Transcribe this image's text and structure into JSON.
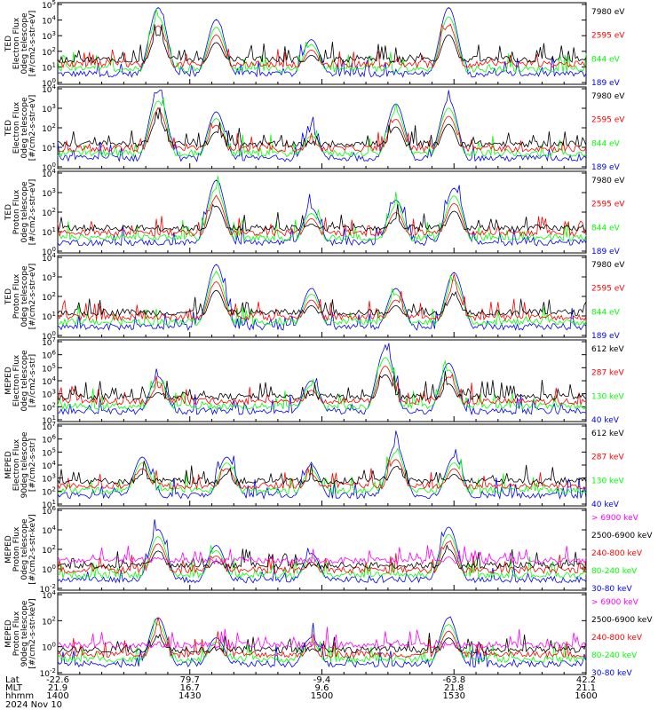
{
  "colors": {
    "black": "#000000",
    "red": "#ff0000",
    "green": "#00ff00",
    "blue": "#0000ff",
    "magenta": "#ff00ff"
  },
  "chart_data": {
    "type": "line",
    "x_axis": {
      "Lat": [
        "-22.6",
        "79.7",
        "-9.4",
        "-63.8",
        "42.2"
      ],
      "MLT": [
        "21.9",
        "16.7",
        "9.6",
        "21.8",
        "21.1"
      ],
      "hhmm": [
        "1400",
        "1430",
        "1500",
        "1530",
        "1600"
      ],
      "row_labels": [
        "Lat",
        "MLT",
        "hhmm"
      ],
      "date_label": "2024 Nov 10",
      "xlim_minutes": [
        0,
        120
      ]
    },
    "panels": [
      {
        "ylabel": [
          "TED",
          "Electron Flux",
          "0deg telescope",
          "[#/cm2-s-str-eV]"
        ],
        "yticks": [
          "10^5",
          "10^4",
          "10^3",
          "10^2",
          "10^1",
          "10^0"
        ],
        "ylim_exp": [
          0,
          5
        ],
        "log": true,
        "series": [
          {
            "name": "7980 eV",
            "color": "#000000"
          },
          {
            "name": "2595 eV",
            "color": "#ff0000"
          },
          {
            "name": "844 eV",
            "color": "#00ff00"
          },
          {
            "name": "189 eV",
            "color": "#0000ff"
          }
        ]
      },
      {
        "ylabel": [
          "TED",
          "Electron Flux",
          "0deg telescope",
          "[#/cm2-s-str-eV]"
        ],
        "yticks": [
          "10^4",
          "10^3",
          "10^2",
          "10^1",
          "10^0"
        ],
        "ylim_exp": [
          0,
          5
        ],
        "log": true,
        "series": [
          {
            "name": "7980 eV",
            "color": "#000000"
          },
          {
            "name": "2595 eV",
            "color": "#ff0000"
          },
          {
            "name": "844 eV",
            "color": "#00ff00"
          },
          {
            "name": "189 eV",
            "color": "#0000ff"
          }
        ]
      },
      {
        "ylabel": [
          "TED",
          "Proton Flux",
          "0deg telescope",
          "[#/cm2-s-str-eV]"
        ],
        "yticks": [
          "10^4",
          "10^3",
          "10^2",
          "10^1",
          "10^0"
        ],
        "ylim_exp": [
          0,
          5
        ],
        "log": true,
        "series": [
          {
            "name": "7980 eV",
            "color": "#000000"
          },
          {
            "name": "2595 eV",
            "color": "#ff0000"
          },
          {
            "name": "844 eV",
            "color": "#00ff00"
          },
          {
            "name": "189 eV",
            "color": "#0000ff"
          }
        ]
      },
      {
        "ylabel": [
          "TED",
          "Proton Flux",
          "0deg telescope",
          "[#/cm2-s-str-eV]"
        ],
        "yticks": [
          "10^4",
          "10^3",
          "10^2",
          "10^1",
          "10^0"
        ],
        "ylim_exp": [
          0,
          5
        ],
        "log": true,
        "series": [
          {
            "name": "7980 eV",
            "color": "#000000"
          },
          {
            "name": "2595 eV",
            "color": "#ff0000"
          },
          {
            "name": "844 eV",
            "color": "#00ff00"
          },
          {
            "name": "189 eV",
            "color": "#0000ff"
          }
        ]
      },
      {
        "ylabel": [
          "MEPED",
          "Electron Flux",
          "0deg telescope",
          "[#/cm2-s-str]"
        ],
        "yticks": [
          "10^7",
          "10^6",
          "10^5",
          "10^4",
          "10^3",
          "10^2",
          "10^1"
        ],
        "ylim_exp": [
          1,
          7
        ],
        "log": true,
        "series": [
          {
            "name": "612 keV",
            "color": "#000000"
          },
          {
            "name": "287 keV",
            "color": "#ff0000"
          },
          {
            "name": "130 keV",
            "color": "#00ff00"
          },
          {
            "name": "40 keV",
            "color": "#0000ff"
          }
        ]
      },
      {
        "ylabel": [
          "MEPED",
          "Electron Flux",
          "90deg telescope",
          "[#/cm2-s-str]"
        ],
        "yticks": [
          "10^7",
          "10^6",
          "10^5",
          "10^4",
          "10^3",
          "10^2",
          "10^1"
        ],
        "ylim_exp": [
          1,
          7
        ],
        "log": true,
        "series": [
          {
            "name": "612 keV",
            "color": "#000000"
          },
          {
            "name": "287 keV",
            "color": "#ff0000"
          },
          {
            "name": "130 keV",
            "color": "#00ff00"
          },
          {
            "name": "40 keV",
            "color": "#0000ff"
          }
        ]
      },
      {
        "ylabel": [
          "MEPED",
          "Proton Flux",
          "0deg telescope",
          "[#/cm2-s-str-keV]"
        ],
        "yticks": [
          "10^6",
          "10^4",
          "10^2",
          "10^0",
          "10^-2"
        ],
        "ylim_exp": [
          -2,
          6
        ],
        "log": true,
        "series": [
          {
            "name": "> 6900 keV",
            "color": "#ff00ff"
          },
          {
            "name": "2500-6900 keV",
            "color": "#000000"
          },
          {
            "name": "240-800 keV",
            "color": "#ff0000"
          },
          {
            "name": "80-240 keV",
            "color": "#00ff00"
          },
          {
            "name": "30-80 keV",
            "color": "#0000ff"
          }
        ]
      },
      {
        "ylabel": [
          "MEPED",
          "Proton Flux",
          "90deg telescope",
          "[#/cm2-s-str-keV]"
        ],
        "yticks": [
          "10^4",
          "10^2",
          "10^0",
          "10^-2"
        ],
        "ylim_exp": [
          -2,
          6
        ],
        "log": true,
        "series": [
          {
            "name": "> 6900 keV",
            "color": "#ff00ff"
          },
          {
            "name": "2500-6900 keV",
            "color": "#000000"
          },
          {
            "name": "240-800 keV",
            "color": "#ff0000"
          },
          {
            "name": "80-240 keV",
            "color": "#00ff00"
          },
          {
            "name": "30-80 keV",
            "color": "#0000ff"
          }
        ]
      }
    ]
  }
}
